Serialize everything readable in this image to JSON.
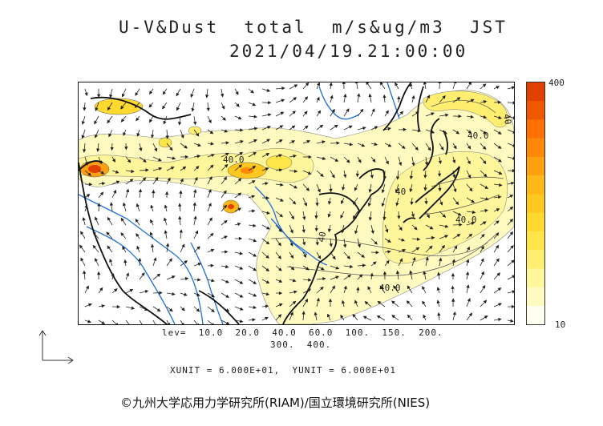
{
  "header": {
    "title": "U-V&Dust  total  m/s&ug/m3  JST",
    "datetime": "2021/04/19.21:00:00"
  },
  "colorbar": {
    "max_label": "400",
    "min_label": "10",
    "colors": [
      "#fffff0",
      "#fffbc0",
      "#fff59a",
      "#ffee70",
      "#ffe548",
      "#ffd830",
      "#ffc820",
      "#ffb818",
      "#ffa010",
      "#ff8808",
      "#ff7000",
      "#f05800",
      "#e04000"
    ]
  },
  "map": {
    "region": "East Asia",
    "contour_labels": [
      "40.0",
      "40.0",
      "40",
      "40",
      "40.0",
      "40.0",
      "40"
    ]
  },
  "legend": {
    "levels_line1": "lev=  10.0  20.0  40.0  60.0  100.  150.  200.",
    "levels_line2": "300.  400."
  },
  "units": {
    "text": "XUNIT = 6.000E+01,  YUNIT = 6.000E+01"
  },
  "footer": {
    "copyright": "©九州大学応用力学研究所(RIAM)/国立環境研究所(NIES)"
  }
}
